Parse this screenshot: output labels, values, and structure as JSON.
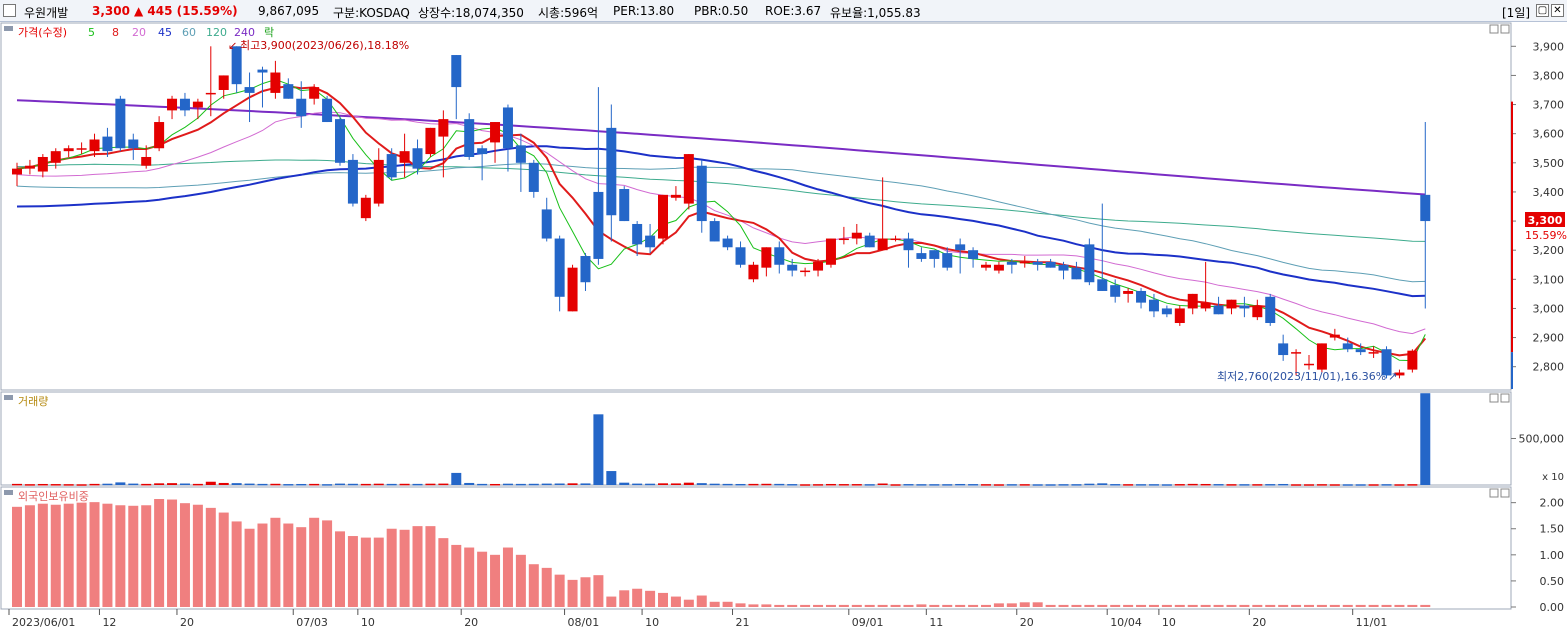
{
  "header": {
    "name": "우원개발",
    "price": "3,300",
    "change": "▲ 445 (15.59%)",
    "volume": "9,867,095",
    "market": "구분:KOSDAQ",
    "shares": "상장수:18,074,350",
    "mcap": "시총:596억",
    "per": "PER:13.80",
    "pbr": "PBR:0.50",
    "roe": "ROE:3.67",
    "turnover": "유보율:1,055.83",
    "period": "[1일]"
  },
  "legend": {
    "price_label": "가격(수정)",
    "ma_labels": [
      "5",
      "8",
      "20",
      "45",
      "60",
      "120",
      "240"
    ],
    "fall_label": "락",
    "volume_label": "거래량",
    "foreign_label": "외국인보유비중"
  },
  "annotations": {
    "high": "최고3,900(2023/06/26),18.18%",
    "low": "최저2,760(2023/11/01),16.36%",
    "last_price": "3,300",
    "last_pct": "15.59%"
  },
  "colors": {
    "up": "#e40000",
    "down": "#2466c8",
    "ma5": "#19c019",
    "ma8": "#e01b1b",
    "ma20": "#d26bd2",
    "ma45": "#1c31c8",
    "ma60": "#5e9fb5",
    "ma120": "#3dab8d",
    "ma240": "#7a2cc4",
    "foreign": "#f07f7f"
  },
  "axes": {
    "price_ticks": [
      "3,900",
      "3,800",
      "3,700",
      "3,600",
      "3,500",
      "3,400",
      "3,300",
      "3,200",
      "3,100",
      "3,000",
      "2,900",
      "2,800"
    ],
    "volume_ticks": [
      "500,000"
    ],
    "volume_unit": "x 10",
    "foreign_ticks": [
      "2.00",
      "1.50",
      "1.00",
      "0.50",
      "0.00"
    ],
    "date_labels": [
      "2023/06/01",
      "12",
      "20",
      "07/03",
      "10",
      "20",
      "08/01",
      "10",
      "21",
      "09/01",
      "11",
      "20",
      "10/04",
      "10",
      "20",
      "11/01"
    ]
  },
  "chart_data": {
    "type": "candlestick",
    "price_range": [
      2720,
      3980
    ],
    "volume_range": [
      0,
      1000000
    ],
    "foreign_range": [
      0,
      2.3
    ],
    "date_label_index": [
      0,
      7,
      13,
      22,
      27,
      35,
      43,
      49,
      56,
      65,
      71,
      78,
      85,
      89,
      96,
      104
    ],
    "candles": [
      {
        "o": 3460,
        "h": 3500,
        "l": 3420,
        "c": 3480,
        "v": 12000,
        "f": 1.92
      },
      {
        "o": 3480,
        "h": 3510,
        "l": 3460,
        "c": 3490,
        "v": 9000,
        "f": 1.95
      },
      {
        "o": 3470,
        "h": 3530,
        "l": 3450,
        "c": 3520,
        "v": 11000,
        "f": 1.98
      },
      {
        "o": 3500,
        "h": 3550,
        "l": 3480,
        "c": 3540,
        "v": 10000,
        "f": 1.96
      },
      {
        "o": 3540,
        "h": 3560,
        "l": 3520,
        "c": 3550,
        "v": 9000,
        "f": 1.98
      },
      {
        "o": 3550,
        "h": 3570,
        "l": 3530,
        "c": 3550,
        "v": 8000,
        "f": 2.0
      },
      {
        "o": 3540,
        "h": 3600,
        "l": 3520,
        "c": 3580,
        "v": 12000,
        "f": 2.01
      },
      {
        "o": 3590,
        "h": 3620,
        "l": 3520,
        "c": 3540,
        "v": 14000,
        "f": 1.98
      },
      {
        "o": 3720,
        "h": 3730,
        "l": 3540,
        "c": 3550,
        "v": 28000,
        "f": 1.95
      },
      {
        "o": 3580,
        "h": 3600,
        "l": 3510,
        "c": 3550,
        "v": 15000,
        "f": 1.94
      },
      {
        "o": 3490,
        "h": 3560,
        "l": 3480,
        "c": 3520,
        "v": 12000,
        "f": 1.95
      },
      {
        "o": 3550,
        "h": 3660,
        "l": 3540,
        "c": 3640,
        "v": 18000,
        "f": 2.07
      },
      {
        "o": 3680,
        "h": 3730,
        "l": 3650,
        "c": 3720,
        "v": 20000,
        "f": 2.06
      },
      {
        "o": 3720,
        "h": 3740,
        "l": 3660,
        "c": 3680,
        "v": 16000,
        "f": 1.99
      },
      {
        "o": 3690,
        "h": 3720,
        "l": 3650,
        "c": 3710,
        "v": 12000,
        "f": 1.96
      },
      {
        "o": 3740,
        "h": 3900,
        "l": 3660,
        "c": 3740,
        "v": 35000,
        "f": 1.9
      },
      {
        "o": 3750,
        "h": 3800,
        "l": 3720,
        "c": 3800,
        "v": 22000,
        "f": 1.81
      },
      {
        "o": 3900,
        "h": 3900,
        "l": 3740,
        "c": 3770,
        "v": 20000,
        "f": 1.64
      },
      {
        "o": 3760,
        "h": 3810,
        "l": 3640,
        "c": 3740,
        "v": 15000,
        "f": 1.5
      },
      {
        "o": 3820,
        "h": 3830,
        "l": 3690,
        "c": 3810,
        "v": 12000,
        "f": 1.6
      },
      {
        "o": 3740,
        "h": 3850,
        "l": 3720,
        "c": 3810,
        "v": 13000,
        "f": 1.71
      },
      {
        "o": 3770,
        "h": 3790,
        "l": 3720,
        "c": 3720,
        "v": 10000,
        "f": 1.6
      },
      {
        "o": 3720,
        "h": 3780,
        "l": 3620,
        "c": 3660,
        "v": 11000,
        "f": 1.53
      },
      {
        "o": 3720,
        "h": 3770,
        "l": 3700,
        "c": 3760,
        "v": 12000,
        "f": 1.71
      },
      {
        "o": 3720,
        "h": 3730,
        "l": 3640,
        "c": 3640,
        "v": 9000,
        "f": 1.66
      },
      {
        "o": 3650,
        "h": 3660,
        "l": 3490,
        "c": 3500,
        "v": 15000,
        "f": 1.45
      },
      {
        "o": 3510,
        "h": 3530,
        "l": 3350,
        "c": 3360,
        "v": 13000,
        "f": 1.36
      },
      {
        "o": 3310,
        "h": 3390,
        "l": 3300,
        "c": 3380,
        "v": 12000,
        "f": 1.33
      },
      {
        "o": 3360,
        "h": 3550,
        "l": 3350,
        "c": 3510,
        "v": 14000,
        "f": 1.33
      },
      {
        "o": 3530,
        "h": 3550,
        "l": 3440,
        "c": 3450,
        "v": 12000,
        "f": 1.5
      },
      {
        "o": 3500,
        "h": 3600,
        "l": 3450,
        "c": 3540,
        "v": 13000,
        "f": 1.48
      },
      {
        "o": 3550,
        "h": 3580,
        "l": 3460,
        "c": 3480,
        "v": 12000,
        "f": 1.55
      },
      {
        "o": 3530,
        "h": 3620,
        "l": 3520,
        "c": 3620,
        "v": 14000,
        "f": 1.55
      },
      {
        "o": 3590,
        "h": 3680,
        "l": 3450,
        "c": 3650,
        "v": 15000,
        "f": 1.32
      },
      {
        "o": 3870,
        "h": 3870,
        "l": 3650,
        "c": 3760,
        "v": 130000,
        "f": 1.19
      },
      {
        "o": 3650,
        "h": 3670,
        "l": 3510,
        "c": 3520,
        "v": 22000,
        "f": 1.14
      },
      {
        "o": 3550,
        "h": 3560,
        "l": 3440,
        "c": 3530,
        "v": 12000,
        "f": 1.06
      },
      {
        "o": 3570,
        "h": 3640,
        "l": 3500,
        "c": 3640,
        "v": 11000,
        "f": 1.0
      },
      {
        "o": 3690,
        "h": 3700,
        "l": 3470,
        "c": 3550,
        "v": 14000,
        "f": 1.14
      },
      {
        "o": 3560,
        "h": 3600,
        "l": 3400,
        "c": 3500,
        "v": 12000,
        "f": 1.0
      },
      {
        "o": 3500,
        "h": 3510,
        "l": 3380,
        "c": 3400,
        "v": 13000,
        "f": 0.82
      },
      {
        "o": 3340,
        "h": 3380,
        "l": 3230,
        "c": 3240,
        "v": 15000,
        "f": 0.75
      },
      {
        "o": 3240,
        "h": 3250,
        "l": 2990,
        "c": 3040,
        "v": 16000,
        "f": 0.62
      },
      {
        "o": 2990,
        "h": 3150,
        "l": 2990,
        "c": 3140,
        "v": 18000,
        "f": 0.52
      },
      {
        "o": 3180,
        "h": 3190,
        "l": 3060,
        "c": 3090,
        "v": 17000,
        "f": 0.57
      },
      {
        "o": 3400,
        "h": 3760,
        "l": 3150,
        "c": 3170,
        "v": 760000,
        "f": 0.61
      },
      {
        "o": 3620,
        "h": 3700,
        "l": 3230,
        "c": 3320,
        "v": 150000,
        "f": 0.2
      },
      {
        "o": 3410,
        "h": 3420,
        "l": 3300,
        "c": 3300,
        "v": 25000,
        "f": 0.32
      },
      {
        "o": 3290,
        "h": 3300,
        "l": 3180,
        "c": 3220,
        "v": 15000,
        "f": 0.35
      },
      {
        "o": 3250,
        "h": 3290,
        "l": 3190,
        "c": 3210,
        "v": 14000,
        "f": 0.31
      },
      {
        "o": 3240,
        "h": 3390,
        "l": 3220,
        "c": 3390,
        "v": 18000,
        "f": 0.27
      },
      {
        "o": 3380,
        "h": 3420,
        "l": 3370,
        "c": 3390,
        "v": 17000,
        "f": 0.2
      },
      {
        "o": 3360,
        "h": 3530,
        "l": 3340,
        "c": 3530,
        "v": 25000,
        "f": 0.14
      },
      {
        "o": 3490,
        "h": 3510,
        "l": 3260,
        "c": 3300,
        "v": 20000,
        "f": 0.22
      },
      {
        "o": 3300,
        "h": 3310,
        "l": 3230,
        "c": 3230,
        "v": 14000,
        "f": 0.1
      },
      {
        "o": 3240,
        "h": 3250,
        "l": 3200,
        "c": 3210,
        "v": 12000,
        "f": 0.1
      },
      {
        "o": 3210,
        "h": 3230,
        "l": 3140,
        "c": 3150,
        "v": 11000,
        "f": 0.07
      },
      {
        "o": 3100,
        "h": 3160,
        "l": 3090,
        "c": 3150,
        "v": 12000,
        "f": 0.05
      },
      {
        "o": 3140,
        "h": 3210,
        "l": 3110,
        "c": 3210,
        "v": 13000,
        "f": 0.05
      },
      {
        "o": 3210,
        "h": 3230,
        "l": 3120,
        "c": 3150,
        "v": 12000,
        "f": 0.04
      },
      {
        "o": 3150,
        "h": 3170,
        "l": 3110,
        "c": 3130,
        "v": 10000,
        "f": 0.04
      },
      {
        "o": 3130,
        "h": 3140,
        "l": 3110,
        "c": 3130,
        "v": 8000,
        "f": 0.04
      },
      {
        "o": 3130,
        "h": 3170,
        "l": 3110,
        "c": 3160,
        "v": 9000,
        "f": 0.04
      },
      {
        "o": 3150,
        "h": 3240,
        "l": 3140,
        "c": 3240,
        "v": 11000,
        "f": 0.04
      },
      {
        "o": 3240,
        "h": 3280,
        "l": 3220,
        "c": 3240,
        "v": 10000,
        "f": 0.04
      },
      {
        "o": 3240,
        "h": 3290,
        "l": 3220,
        "c": 3260,
        "v": 10000,
        "f": 0.04
      },
      {
        "o": 3250,
        "h": 3260,
        "l": 3210,
        "c": 3210,
        "v": 9000,
        "f": 0.04
      },
      {
        "o": 3200,
        "h": 3450,
        "l": 3200,
        "c": 3240,
        "v": 16000,
        "f": 0.04
      },
      {
        "o": 3240,
        "h": 3250,
        "l": 3230,
        "c": 3240,
        "v": 8000,
        "f": 0.04
      },
      {
        "o": 3240,
        "h": 3260,
        "l": 3140,
        "c": 3200,
        "v": 10000,
        "f": 0.04
      },
      {
        "o": 3190,
        "h": 3210,
        "l": 3160,
        "c": 3170,
        "v": 9000,
        "f": 0.05
      },
      {
        "o": 3200,
        "h": 3200,
        "l": 3140,
        "c": 3170,
        "v": 9000,
        "f": 0.04
      },
      {
        "o": 3190,
        "h": 3210,
        "l": 3130,
        "c": 3140,
        "v": 9000,
        "f": 0.04
      },
      {
        "o": 3220,
        "h": 3240,
        "l": 3120,
        "c": 3200,
        "v": 11000,
        "f": 0.04
      },
      {
        "o": 3200,
        "h": 3210,
        "l": 3140,
        "c": 3170,
        "v": 10000,
        "f": 0.04
      },
      {
        "o": 3140,
        "h": 3160,
        "l": 3130,
        "c": 3150,
        "v": 9000,
        "f": 0.04
      },
      {
        "o": 3130,
        "h": 3160,
        "l": 3120,
        "c": 3150,
        "v": 8000,
        "f": 0.07
      },
      {
        "o": 3160,
        "h": 3170,
        "l": 3120,
        "c": 3150,
        "v": 9000,
        "f": 0.07
      },
      {
        "o": 3160,
        "h": 3180,
        "l": 3140,
        "c": 3160,
        "v": 9000,
        "f": 0.09
      },
      {
        "o": 3160,
        "h": 3170,
        "l": 3130,
        "c": 3150,
        "v": 8000,
        "f": 0.09
      },
      {
        "o": 3160,
        "h": 3170,
        "l": 3140,
        "c": 3140,
        "v": 8000,
        "f": 0.04
      },
      {
        "o": 3150,
        "h": 3160,
        "l": 3100,
        "c": 3130,
        "v": 9000,
        "f": 0.04
      },
      {
        "o": 3140,
        "h": 3160,
        "l": 3100,
        "c": 3100,
        "v": 9000,
        "f": 0.04
      },
      {
        "o": 3220,
        "h": 3240,
        "l": 3080,
        "c": 3090,
        "v": 14000,
        "f": 0.04
      },
      {
        "o": 3100,
        "h": 3360,
        "l": 3060,
        "c": 3060,
        "v": 18000,
        "f": 0.04
      },
      {
        "o": 3080,
        "h": 3100,
        "l": 3020,
        "c": 3040,
        "v": 10000,
        "f": 0.04
      },
      {
        "o": 3050,
        "h": 3070,
        "l": 3020,
        "c": 3060,
        "v": 9000,
        "f": 0.04
      },
      {
        "o": 3060,
        "h": 3070,
        "l": 3000,
        "c": 3020,
        "v": 9000,
        "f": 0.04
      },
      {
        "o": 3030,
        "h": 3050,
        "l": 2970,
        "c": 2990,
        "v": 9000,
        "f": 0.04
      },
      {
        "o": 3000,
        "h": 3010,
        "l": 2970,
        "c": 2980,
        "v": 8000,
        "f": 0.04
      },
      {
        "o": 2950,
        "h": 3010,
        "l": 2940,
        "c": 3000,
        "v": 10000,
        "f": 0.04
      },
      {
        "o": 3000,
        "h": 3050,
        "l": 2980,
        "c": 3050,
        "v": 12000,
        "f": 0.04
      },
      {
        "o": 3000,
        "h": 3160,
        "l": 2990,
        "c": 3020,
        "v": 11000,
        "f": 0.04
      },
      {
        "o": 3010,
        "h": 3040,
        "l": 2980,
        "c": 2980,
        "v": 10000,
        "f": 0.04
      },
      {
        "o": 3000,
        "h": 3030,
        "l": 2980,
        "c": 3030,
        "v": 9000,
        "f": 0.04
      },
      {
        "o": 3010,
        "h": 3040,
        "l": 2970,
        "c": 3000,
        "v": 9000,
        "f": 0.04
      },
      {
        "o": 2970,
        "h": 3030,
        "l": 2960,
        "c": 3010,
        "v": 9000,
        "f": 0.04
      },
      {
        "o": 3040,
        "h": 3050,
        "l": 2940,
        "c": 2950,
        "v": 10000,
        "f": 0.04
      },
      {
        "o": 2880,
        "h": 2910,
        "l": 2820,
        "c": 2840,
        "v": 11000,
        "f": 0.04
      },
      {
        "o": 2850,
        "h": 2860,
        "l": 2770,
        "c": 2850,
        "v": 8000,
        "f": 0.04
      },
      {
        "o": 2810,
        "h": 2840,
        "l": 2790,
        "c": 2810,
        "v": 8000,
        "f": 0.04
      },
      {
        "o": 2790,
        "h": 2880,
        "l": 2780,
        "c": 2880,
        "v": 9000,
        "f": 0.04
      },
      {
        "o": 2900,
        "h": 2930,
        "l": 2890,
        "c": 2910,
        "v": 8000,
        "f": 0.04
      },
      {
        "o": 2880,
        "h": 2900,
        "l": 2850,
        "c": 2860,
        "v": 8000,
        "f": 0.04
      },
      {
        "o": 2860,
        "h": 2880,
        "l": 2840,
        "c": 2850,
        "v": 8000,
        "f": 0.04
      },
      {
        "o": 2850,
        "h": 2870,
        "l": 2830,
        "c": 2850,
        "v": 8000,
        "f": 0.04
      },
      {
        "o": 2860,
        "h": 2870,
        "l": 2760,
        "c": 2770,
        "v": 9000,
        "f": 0.04
      },
      {
        "o": 2770,
        "h": 2790,
        "l": 2760,
        "c": 2780,
        "v": 8000,
        "f": 0.04
      },
      {
        "o": 2790,
        "h": 2860,
        "l": 2780,
        "c": 2855,
        "v": 9000,
        "f": 0.04
      },
      {
        "o": 3390,
        "h": 3640,
        "l": 3000,
        "c": 3300,
        "v": 987000,
        "f": 0.04
      }
    ],
    "ma_start": {
      "ma20": 3460,
      "ma45": 3350,
      "ma60": 3420,
      "ma120": 3490,
      "ma240": 3715
    },
    "ma_end": {
      "ma20": 2920,
      "ma45": 3040,
      "ma60": 3090,
      "ma120": 3310,
      "ma240": 3410
    }
  }
}
